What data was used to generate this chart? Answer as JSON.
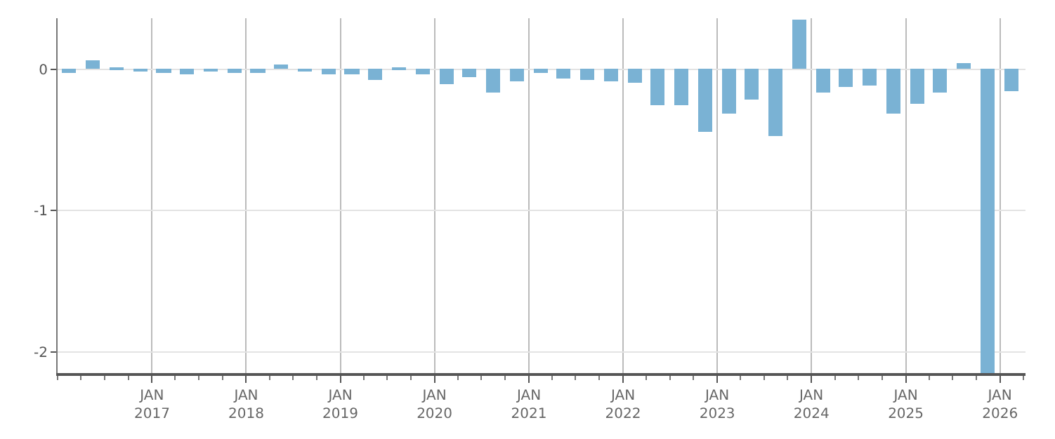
{
  "chart_data": {
    "type": "bar",
    "color": "#7ab2d4",
    "x": [
      "2016-02-15",
      "2016-05-15",
      "2016-08-15",
      "2016-11-15",
      "2017-02-15",
      "2017-05-15",
      "2017-08-15",
      "2017-11-15",
      "2018-02-15",
      "2018-05-15",
      "2018-08-15",
      "2018-11-15",
      "2019-02-15",
      "2019-05-15",
      "2019-08-15",
      "2019-11-15",
      "2020-02-15",
      "2020-05-15",
      "2020-08-15",
      "2020-11-15",
      "2021-02-15",
      "2021-05-15",
      "2021-08-15",
      "2021-11-15",
      "2022-02-15",
      "2022-05-15",
      "2022-08-15",
      "2022-11-15",
      "2023-02-15",
      "2023-05-15",
      "2023-08-15",
      "2023-11-15",
      "2024-02-15",
      "2024-05-15",
      "2024-08-15",
      "2024-11-15",
      "2025-02-15",
      "2025-05-15",
      "2025-08-15",
      "2025-11-15",
      "2026-02-15"
    ],
    "values": [
      -0.03,
      0.065,
      0.01,
      -0.02,
      -0.03,
      -0.04,
      -0.02,
      -0.03,
      -0.03,
      0.03,
      -0.01,
      -0.04,
      -0.04,
      -0.075,
      0.01,
      -0.04,
      -0.11,
      -0.055,
      -0.17,
      -0.09,
      -0.03,
      -0.065,
      -0.075,
      -0.09,
      -0.1,
      -0.26,
      -0.26,
      -0.44,
      -0.31,
      -0.22,
      -0.47,
      0.35,
      -0.17,
      -0.13,
      -0.12,
      -0.31,
      -0.25,
      -0.17,
      0.04,
      -2.15,
      -0.16
    ],
    "xlim": [
      "2016-01-01",
      "2026-04-10"
    ],
    "xticks": [
      {
        "value": "2017-01-01",
        "label": "JAN\n2017"
      },
      {
        "value": "2018-01-01",
        "label": "JAN\n2018"
      },
      {
        "value": "2019-01-01",
        "label": "JAN\n2019"
      },
      {
        "value": "2020-01-01",
        "label": "JAN\n2020"
      },
      {
        "value": "2021-01-01",
        "label": "JAN\n2021"
      },
      {
        "value": "2022-01-01",
        "label": "JAN\n2022"
      },
      {
        "value": "2023-01-01",
        "label": "JAN\n2023"
      },
      {
        "value": "2024-01-01",
        "label": "JAN\n2024"
      },
      {
        "value": "2025-01-01",
        "label": "JAN\n2025"
      },
      {
        "value": "2026-01-01",
        "label": "JAN\n2026"
      }
    ],
    "ylim": [
      -2.15,
      0.36
    ],
    "yticks": [
      0,
      -1,
      -2
    ],
    "grid": true
  }
}
